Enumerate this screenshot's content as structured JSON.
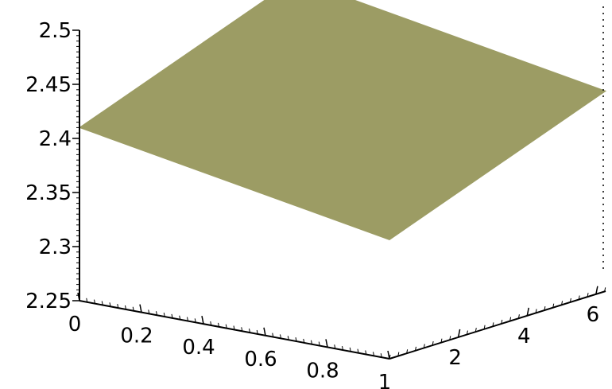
{
  "chart_data": {
    "type": "surface3d",
    "title": "",
    "xlabel": "",
    "ylabel": "",
    "zlabel": "",
    "x_range": [
      0,
      1
    ],
    "y_range": [
      0,
      6.28
    ],
    "z_range": [
      2.25,
      2.5
    ],
    "x_ticks": [
      "0",
      "0.2",
      "0.4",
      "0.6",
      "0.8",
      "1"
    ],
    "y_ticks": [
      "2",
      "4",
      "6"
    ],
    "z_ticks": [
      "2.25",
      "2.3",
      "2.35",
      "2.4",
      "2.45",
      "2.5"
    ],
    "surface": {
      "description": "plane",
      "corners": [
        {
          "x": 0,
          "y": 0,
          "z": 2.41
        },
        {
          "x": 1,
          "y": 0,
          "z": 2.36
        },
        {
          "x": 1,
          "y": 6.28,
          "z": 2.435
        },
        {
          "x": 0,
          "y": 6.28,
          "z": 2.485
        }
      ]
    },
    "colors": {
      "surface": "#9c9c64",
      "axes": "#000000"
    },
    "grid": false,
    "legend": "none"
  }
}
